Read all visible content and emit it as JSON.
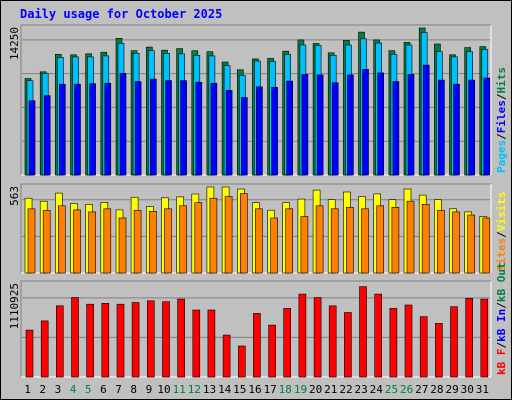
{
  "chart_data": {
    "type": "bar",
    "title": "Daily usage for October 2025",
    "categories": [
      "1",
      "2",
      "3",
      "4",
      "5",
      "6",
      "7",
      "8",
      "9",
      "10",
      "11",
      "12",
      "13",
      "14",
      "15",
      "16",
      "17",
      "18",
      "19",
      "20",
      "21",
      "22",
      "23",
      "24",
      "25",
      "26",
      "27",
      "28",
      "29",
      "30",
      "31"
    ],
    "weekend_days": [
      "4",
      "5",
      "11",
      "12",
      "18",
      "19",
      "25",
      "26"
    ],
    "panels": [
      {
        "id": "hits-files-pages",
        "max_label": "14250",
        "ymax": 14250,
        "side_label": [
          "Pages",
          "Files",
          "Hits"
        ],
        "series": [
          {
            "name": "Hits",
            "color": "#008040",
            "values": [
              9350,
              10000,
              11700,
              11650,
              11750,
              11900,
              13250,
              12050,
              12400,
              12100,
              12250,
              12050,
              11950,
              10950,
              10200,
              11250,
              11300,
              12000,
              13100,
              12750,
              11850,
              13050,
              13850,
              13100,
              12050,
              12850,
              14250,
              12700,
              11650,
              12350,
              12450
            ]
          },
          {
            "name": "Files",
            "color": "#00c0ff",
            "values": [
              9150,
              9850,
              11400,
              11450,
              11450,
              11550,
              12750,
              11800,
              12050,
              11800,
              11750,
              11600,
              11550,
              10600,
              9650,
              11050,
              11000,
              11700,
              12600,
              12550,
              11600,
              12600,
              13200,
              12800,
              11700,
              12600,
              13800,
              11950,
              11450,
              11950,
              12150
            ]
          },
          {
            "name": "Pages",
            "color": "#0000ff",
            "values": [
              7200,
              7700,
              8800,
              8800,
              8850,
              8900,
              9850,
              9050,
              9300,
              9150,
              9150,
              9000,
              8900,
              8200,
              7500,
              8550,
              8500,
              9100,
              9750,
              9700,
              8950,
              9700,
              10250,
              9900,
              9050,
              9750,
              10650,
              9200,
              8800,
              9200,
              9400
            ]
          }
        ]
      },
      {
        "id": "visits-sites",
        "max_label": "563",
        "ymax": 563,
        "side_label": [
          "Sites",
          "Visits"
        ],
        "series": [
          {
            "name": "Visits",
            "color": "#ffff00",
            "values": [
              490,
              470,
              523,
              455,
              450,
              462,
              413,
              496,
              435,
              492,
              498,
              517,
              563,
              563,
              550,
              460,
              411,
              460,
              484,
              543,
              480,
              530,
              500,
              518,
              480,
              550,
              510,
              480,
              420,
              400,
              370
            ]
          },
          {
            "name": "Sites",
            "color": "#ff8000",
            "values": [
              420,
              410,
              440,
              413,
              400,
              420,
              360,
              410,
              404,
              420,
              440,
              460,
              490,
              500,
              520,
              420,
              360,
              420,
              370,
              440,
              420,
              430,
              420,
              440,
              430,
              470,
              450,
              410,
              400,
              380,
              360
            ]
          }
        ]
      },
      {
        "id": "kbytes",
        "max_label": "1110925",
        "ymax": 1110925,
        "side_label": [
          "kB F",
          "kB In",
          "kB Out"
        ],
        "series": [
          {
            "name": "kB F",
            "color": "#ff0000",
            "values": [
              560000,
              670000,
              850000,
              950000,
              870000,
              880000,
              870000,
              890000,
              910000,
              900000,
              930000,
              800000,
              800000,
              500000,
              370000,
              760000,
              620000,
              820000,
              990000,
              950000,
              850000,
              770000,
              1080000,
              990000,
              820000,
              860000,
              720000,
              640000,
              840000,
              940000,
              930000
            ]
          }
        ]
      }
    ]
  }
}
